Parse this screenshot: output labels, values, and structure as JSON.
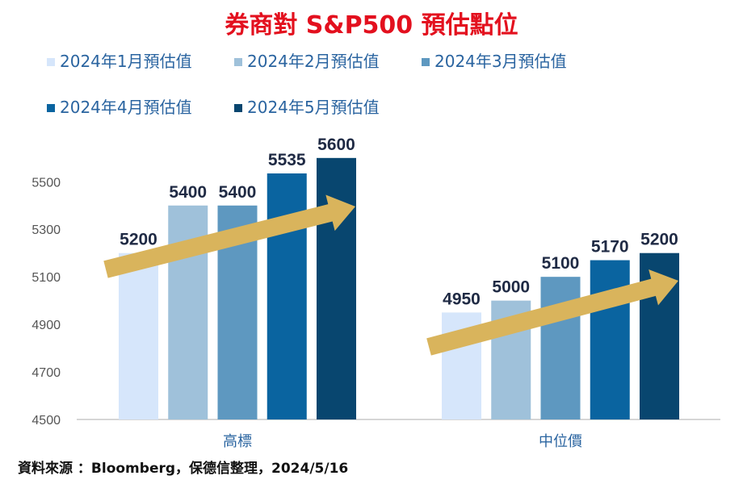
{
  "chart_data": {
    "type": "bar",
    "title": "券商對 S&P500 預估點位",
    "categories": [
      "高標",
      "中位價"
    ],
    "series": [
      {
        "name": "2024年1月預估值",
        "values": [
          5200,
          4950
        ],
        "color": "#d6e6fb"
      },
      {
        "name": "2024年2月預估值",
        "values": [
          5400,
          5000
        ],
        "color": "#9fc1da"
      },
      {
        "name": "2024年3月預估值",
        "values": [
          5400,
          5100
        ],
        "color": "#5e98c0"
      },
      {
        "name": "2024年4月預估值",
        "values": [
          5535,
          5170
        ],
        "color": "#0a64a0"
      },
      {
        "name": "2024年5月預估值",
        "values": [
          5600,
          5200
        ],
        "color": "#08466f"
      }
    ],
    "yticks": [
      4500,
      4700,
      4900,
      5100,
      5300,
      5500
    ],
    "ylim": [
      4500,
      5600
    ],
    "xlabel": "",
    "ylabel": "",
    "grid": false,
    "legend_position": "top",
    "annotation": "upward trend arrows"
  },
  "arrow_color": "#d9b45c",
  "source": "資料來源 ：Bloomberg，保德信整理，2024/5/16"
}
